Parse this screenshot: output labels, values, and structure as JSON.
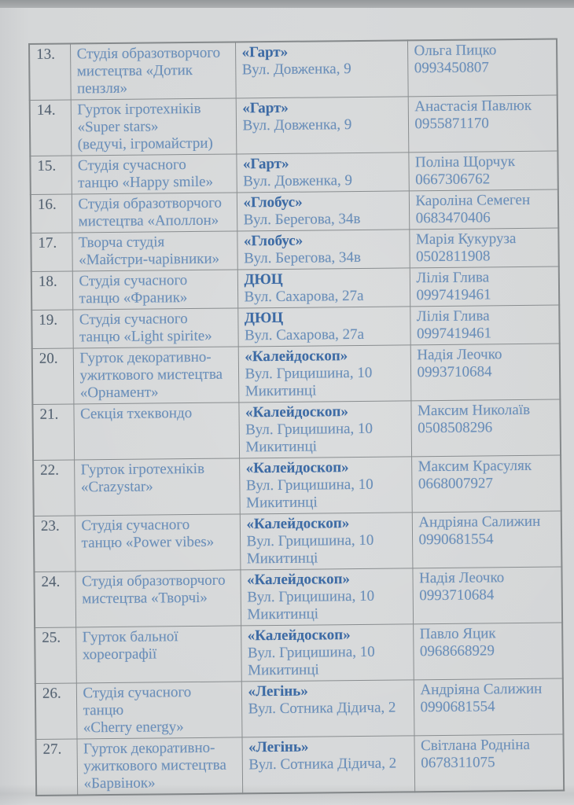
{
  "document": {
    "kind": "photographed paper list of children's clubs and studios",
    "language": "Ukrainian",
    "colors": {
      "paper": "#d6d8d9",
      "text_blue": "#6a8fba",
      "org_bold_blue": "#3d6ba5",
      "row_number": "#54616f",
      "border": "#898d8f"
    }
  },
  "rows": [
    {
      "num": "13.",
      "name": "Студія образотворчого\nмистецтва «Дотик\nпензля»",
      "org": "«Гарт»",
      "address": "Вул. Довженка, 9",
      "person": "Ольга Пицко",
      "phone": "0993450807"
    },
    {
      "num": "14.",
      "name": "Гурток ігротехніків\n«Super stars»\n(ведучі, ігромайстри)",
      "org": "«Гарт»",
      "address": "Вул. Довженка, 9",
      "person": "Анастасія Павлюк",
      "phone": "0955871170"
    },
    {
      "num": "15.",
      "name": "Студія сучасного\nтанцю «Happy smile»",
      "org": "«Гарт»",
      "address": "Вул. Довженка, 9",
      "person": "Поліна Щорчук",
      "phone": "0667306762"
    },
    {
      "num": "16.",
      "name": "Студія образотворчого\nмистецтва «Аполлон»",
      "org": "«Глобус»",
      "address": "Вул. Берегова, 34в",
      "person": "Кароліна Семеген",
      "phone": "0683470406"
    },
    {
      "num": "17.",
      "name": "Творча студія\n«Майстри-чарівники»",
      "org": "«Глобус»",
      "address": "Вул. Берегова, 34в",
      "person": "Марія Кукуруза",
      "phone": "0502811908"
    },
    {
      "num": "18.",
      "name": "Студія сучасного\nтанцю «Франик»",
      "org": "ДЮЦ",
      "address": "Вул. Сахарова, 27а",
      "person": "Лілія Глива",
      "phone": "0997419461"
    },
    {
      "num": "19.",
      "name": "Студія сучасного\nтанцю «Light spirite»",
      "org": "ДЮЦ",
      "address": "Вул. Сахарова, 27а",
      "person": "Лілія Глива",
      "phone": "0997419461"
    },
    {
      "num": "20.",
      "name": "Гурток декоративно-\nужиткового мистецтва\n«Орнамент»",
      "org": "«Калейдоскоп»",
      "address": "Вул. Грицишина, 10\nМикитинці",
      "person": "Надія Леочко",
      "phone": "0993710684"
    },
    {
      "num": "21.",
      "name": "Секція тхеквондо",
      "org": "«Калейдоскоп»",
      "address": "Вул. Грицишина, 10\nМикитинці",
      "person": "Максим Николаїв",
      "phone": "0508508296"
    },
    {
      "num": "22.",
      "name": "Гурток ігротехніків\n«Crazystar»",
      "org": "«Калейдоскоп»",
      "address": "Вул. Грицишина, 10\nМикитинці",
      "person": "Максим Красуляк",
      "phone": "0668007927"
    },
    {
      "num": "23.",
      "name": "Студія сучасного\nтанцю «Power vibes»",
      "org": "«Калейдоскоп»",
      "address": "Вул. Грицишина, 10\nМикитинці",
      "person": "Андріяна Салижин",
      "phone": "0990681554"
    },
    {
      "num": "24.",
      "name": "Студія образотворчого\nмистецтва «Творчі»",
      "org": "«Калейдоскоп»",
      "address": "Вул. Грицишина, 10\nМикитинці",
      "person": "Надія Леочко",
      "phone": "0993710684"
    },
    {
      "num": "25.",
      "name": "Гурток бальної\nхореографії",
      "org": "«Калейдоскоп»",
      "address": "Вул. Грицишина, 10\nМикитинці",
      "person": "Павло Яцик",
      "phone": "0968668929"
    },
    {
      "num": "26.",
      "name": "Студія сучасного\nтанцю\n«Cherry energy»",
      "org": "«Легінь»",
      "address": "Вул. Сотника Дідича, 2",
      "person": "Андріяна Салижин",
      "phone": "0990681554"
    },
    {
      "num": "27.",
      "name": "Гурток декоративно-\nужиткового мистецтва\n«Барвінок»",
      "org": "«Легінь»",
      "address": "Вул. Сотника Дідича, 2",
      "person": "Світлана Родніна",
      "phone": "0678311075"
    }
  ]
}
